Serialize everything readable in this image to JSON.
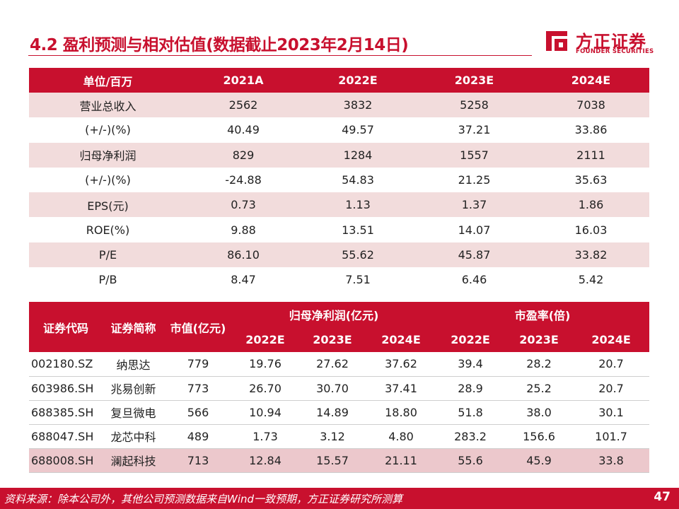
{
  "title": "4.2 盈利预测与相对估值(数据截止2023年2月14日)",
  "logo": {
    "cn": "方正证券",
    "en": "FOUNDER SECURITIES",
    "color": "#c8102e"
  },
  "forecast_table": {
    "headers": [
      "单位/百万",
      "2021A",
      "2022E",
      "2023E",
      "2024E"
    ],
    "rows": [
      [
        "营业总收入",
        "2562",
        "3832",
        "5258",
        "7038"
      ],
      [
        "(+/-)(%)",
        "40.49",
        "49.57",
        "37.21",
        "33.86"
      ],
      [
        "归母净利润",
        "829",
        "1284",
        "1557",
        "2111"
      ],
      [
        "(+/-)(%)",
        "-24.88",
        "54.83",
        "21.25",
        "35.63"
      ],
      [
        "EPS(元)",
        "0.73",
        "1.13",
        "1.37",
        "1.86"
      ],
      [
        "ROE(%)",
        "9.88",
        "13.51",
        "14.07",
        "16.03"
      ],
      [
        "P/E",
        "86.10",
        "55.62",
        "45.87",
        "33.82"
      ],
      [
        "P/B",
        "8.47",
        "7.51",
        "6.46",
        "5.42"
      ]
    ]
  },
  "comp_table": {
    "header_top": {
      "code": "证券代码",
      "name": "证券简称",
      "mcap": "市值(亿元)",
      "profit_group": "归母净利润(亿元)",
      "pe_group": "市盈率(倍)"
    },
    "years": [
      "2022E",
      "2023E",
      "2024E",
      "2022E",
      "2023E",
      "2024E"
    ],
    "rows": [
      [
        "002180.SZ",
        "纳思达",
        "779",
        "19.76",
        "27.62",
        "37.62",
        "39.4",
        "28.2",
        "20.7"
      ],
      [
        "603986.SH",
        "兆易创新",
        "773",
        "26.70",
        "30.70",
        "37.41",
        "28.9",
        "25.2",
        "20.7"
      ],
      [
        "688385.SH",
        "复旦微电",
        "566",
        "10.94",
        "14.89",
        "18.80",
        "51.8",
        "38.0",
        "30.1"
      ],
      [
        "688047.SH",
        "龙芯中科",
        "489",
        "1.73",
        "3.12",
        "4.80",
        "283.2",
        "156.6",
        "101.7"
      ],
      [
        "688008.SH",
        "澜起科技",
        "713",
        "12.84",
        "15.57",
        "21.11",
        "55.6",
        "45.9",
        "33.8"
      ]
    ]
  },
  "footer": {
    "source": "资料来源：除本公司外，其他公司预测数据来自Wind一致预期，方正证券研究所测算",
    "page": "47"
  },
  "colors": {
    "brand_red": "#c8102e",
    "row_tint": "#f2dcdc",
    "highlight": "#ecc8cc"
  }
}
